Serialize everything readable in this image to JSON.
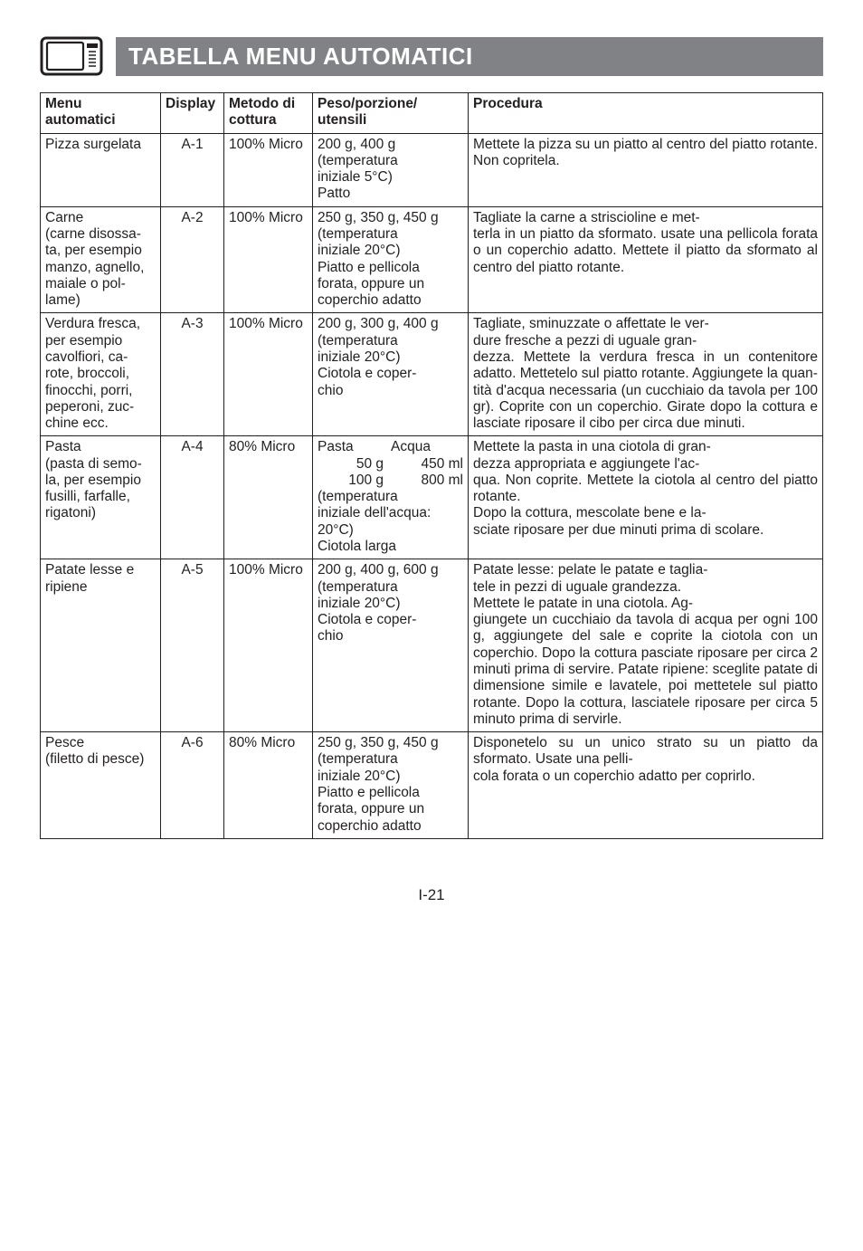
{
  "header": {
    "title": "TABELLA MENU AUTOMATICI"
  },
  "table": {
    "columns": {
      "menu": "Menu\nautomatici",
      "display": "Display",
      "metodo": "Metodo di\ncottura",
      "peso": "Peso/porzione/\nutensili",
      "procedura": "Procedura"
    },
    "rows": [
      {
        "menu": "Pizza surgelata",
        "display": "A-1",
        "metodo": "100% Micro",
        "peso": "200 g, 400 g\n(temperatura\niniziale 5°C)\nPatto",
        "procedura": "Mettete la pizza su un piatto al centro del piatto rotante. Non copritela."
      },
      {
        "menu": "Carne\n(carne disossa-\nta, per esempio manzo, agnello, maiale o pol-\nlame)",
        "display": "A-2",
        "metodo": "100% Micro",
        "peso": "250 g, 350 g, 450 g\n(temperatura\niniziale 20°C)\nPiatto e pellicola forata, oppure un coperchio adatto",
        "procedura": "Tagliate la carne a striscioline e met-\nterla in un piatto da sformato. usate una pellicola forata o un coperchio adatto. Mettete il piatto da sformato al centro del piatto rotante."
      },
      {
        "menu": "Verdura fresca, per esempio\ncavolfiori, ca-\nrote, broccoli, finocchi, porri, peperoni, zuc-\nchine ecc.",
        "display": "A-3",
        "metodo": "100% Micro",
        "peso": "200 g, 300 g, 400 g\n(temperatura\niniziale 20°C)\nCiotola e coper-\nchio",
        "procedura": "Tagliate, sminuzzate o affettate le ver-\ndure fresche a pezzi di uguale gran-\ndezza. Mettete la verdura fresca in un contenitore adatto. Mettetelo sul piatto rotante. Aggiungete la quan-\ntità d'acqua necessaria (un cucchiaio da tavola per 100 gr). Coprite con un coperchio. Girate dopo la cottura e lasciate riposare il cibo per circa due minuti."
      },
      {
        "menu": "Pasta\n(pasta di semo-\nla, per esempio fusilli, farfalle, rigatoni)",
        "display": "A-4",
        "metodo": "80% Micro",
        "peso_pasta": {
          "h1": "Pasta",
          "h2": "Acqua",
          "r1a": " 50 g",
          "r1b": "450 ml",
          "r2a": "100 g",
          "r2b": "800 ml",
          "rest": "(temperatura\niniziale dell'acqua: 20°C)\nCiotola larga"
        },
        "procedura": "Mettete la pasta in una ciotola di gran-\ndezza appropriata e aggiungete l'ac-\nqua. Non coprite. Mettete la ciotola al centro del piatto rotante.\nDopo la cottura, mescolate bene e la-\nsciate riposare per due minuti prima di scolare."
      },
      {
        "menu": "Patate lesse e ripiene",
        "display": "A-5",
        "metodo": "100% Micro",
        "peso": "200 g, 400 g, 600 g\n(temperatura\niniziale 20°C)\nCiotola e coper-\nchio",
        "procedura": "Patate lesse: pelate le patate e taglia-\ntele in pezzi di uguale grandezza.\nMettete le patate in una ciotola. Ag-\ngiungete un cucchiaio da tavola di acqua per ogni 100 g, aggiungete del sale e coprite la ciotola con un coperchio. Dopo la cottura pasciate riposare per circa 2 minuti prima di servire. Patate ripiene: sceglite patate di dimensione simile e lavatele, poi mettetele sul piatto rotante. Dopo la cottura, lasciatele riposare per circa 5 minuto prima di servirle."
      },
      {
        "menu": "Pesce\n(filetto di pesce)",
        "display": "A-6",
        "metodo": "80% Micro",
        "peso": "250 g, 350 g, 450 g\n(temperatura\niniziale 20°C)\nPiatto e pellicola forata, oppure un coperchio adatto",
        "procedura": "Disponetelo su un unico strato su un piatto da sformato. Usate una pelli-\ncola forata o un coperchio adatto per coprirlo."
      }
    ]
  },
  "footer": {
    "page": "I-21"
  }
}
